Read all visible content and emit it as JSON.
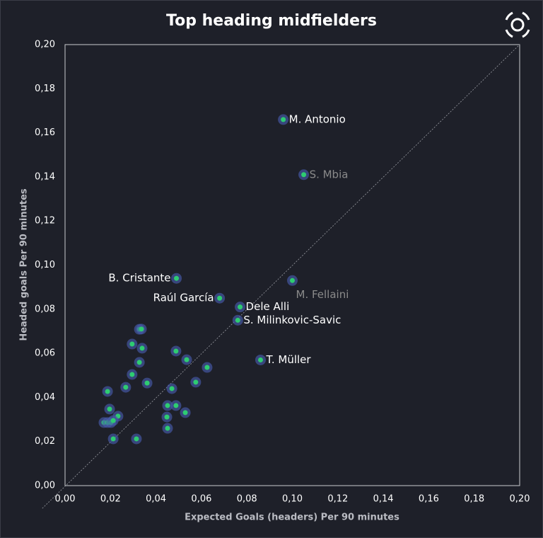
{
  "chart_data": {
    "type": "scatter",
    "title": "Top heading midfielders",
    "x_label": "Expected Goals (headers) Per 90 minutes",
    "y_label": "Headed goals Per 90 minutes",
    "x": [
      0.096,
      0.105,
      0.049,
      0.1,
      0.068,
      0.077,
      0.076,
      0.086,
      0.0327,
      0.0336,
      0.0295,
      0.0339,
      0.0488,
      0.0327,
      0.0535,
      0.0625,
      0.0295,
      0.0361,
      0.0575,
      0.0267,
      0.047,
      0.0187,
      0.0451,
      0.0488,
      0.0196,
      0.0529,
      0.0448,
      0.0233,
      0.0171,
      0.0187,
      0.0202,
      0.0212,
      0.0451,
      0.0212,
      0.0314
    ],
    "values": [
      0.166,
      0.141,
      0.094,
      0.093,
      0.085,
      0.081,
      0.075,
      0.057,
      0.0709,
      0.071,
      0.0642,
      0.0623,
      0.061,
      0.0559,
      0.0571,
      0.0536,
      0.0504,
      0.0465,
      0.0469,
      0.0446,
      0.044,
      0.0427,
      0.0363,
      0.0363,
      0.0347,
      0.0331,
      0.0311,
      0.0315,
      0.0286,
      0.0286,
      0.0286,
      0.0295,
      0.026,
      0.0212,
      0.0212
    ],
    "color": "#2ecc71",
    "annotations": [
      {
        "text": "M. Antonio",
        "point": 0,
        "color": "#ffffff",
        "position": "right"
      },
      {
        "text": "S. Mbia",
        "point": 1,
        "color": "#8a8a8a",
        "position": "right"
      },
      {
        "text": "B. Cristante",
        "point": 2,
        "color": "#ffffff",
        "position": "left"
      },
      {
        "text": "M. Fellaini",
        "point": 3,
        "color": "#8a8a8a",
        "position": "below"
      },
      {
        "text": "Raúl García",
        "point": 4,
        "color": "#ffffff",
        "position": "left"
      },
      {
        "text": "Dele Alli",
        "point": 5,
        "color": "#ffffff",
        "position": "right"
      },
      {
        "text": "S. Milinkovic-Savic",
        "point": 6,
        "color": "#ffffff",
        "position": "right"
      },
      {
        "text": "T. Müller",
        "point": 7,
        "color": "#ffffff",
        "position": "right"
      }
    ],
    "xlim": [
      0,
      0.2
    ],
    "ylim": [
      0,
      0.2
    ],
    "xticks": [
      {
        "value": 0,
        "label": "0,00"
      },
      {
        "value": 0.02,
        "label": "0,02"
      },
      {
        "value": 0.04,
        "label": "0,04"
      },
      {
        "value": 0.06,
        "label": "0,06"
      },
      {
        "value": 0.08,
        "label": "0,08"
      },
      {
        "value": 0.1,
        "label": "0,10"
      },
      {
        "value": 0.12,
        "label": "0,12"
      },
      {
        "value": 0.14,
        "label": "0,14"
      },
      {
        "value": 0.16,
        "label": "0,16"
      },
      {
        "value": 0.18,
        "label": "0,18"
      },
      {
        "value": 0.2,
        "label": "0,20"
      }
    ],
    "yticks": [
      {
        "value": 0,
        "label": "0,00"
      },
      {
        "value": 0.02,
        "label": "0,02"
      },
      {
        "value": 0.04,
        "label": "0,04"
      },
      {
        "value": 0.06,
        "label": "0,06"
      },
      {
        "value": 0.08,
        "label": "0,08"
      },
      {
        "value": 0.1,
        "label": "0,10"
      },
      {
        "value": 0.12,
        "label": "0,12"
      },
      {
        "value": 0.14,
        "label": "0,14"
      },
      {
        "value": 0.16,
        "label": "0,16"
      },
      {
        "value": 0.18,
        "label": "0,18"
      },
      {
        "value": 0.2,
        "label": "0,20"
      }
    ],
    "diagonal": true,
    "grid": false
  }
}
